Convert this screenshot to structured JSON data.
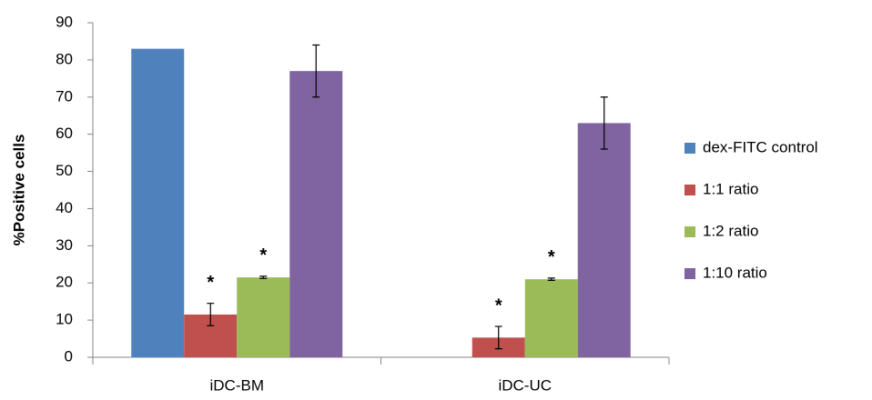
{
  "chart_data": {
    "type": "bar",
    "y_label": "%Positive  cells",
    "categories": [
      "iDC-BM",
      "iDC-UC"
    ],
    "series": [
      {
        "name": "dex-FITC control",
        "color": "#4f81bd",
        "values": [
          83,
          0
        ]
      },
      {
        "name": "1:1 ratio",
        "color": "#c0504d",
        "values": [
          11.5,
          5.3
        ],
        "errors": [
          3,
          3
        ],
        "markers": [
          "*",
          "*"
        ]
      },
      {
        "name": "1:2 ratio",
        "color": "#9bbb59",
        "values": [
          21.5,
          21
        ],
        "errors": [
          0.3,
          0.3
        ],
        "markers": [
          "*",
          "*"
        ]
      },
      {
        "name": "1:10 ratio",
        "color": "#8064a2",
        "values": [
          77,
          63
        ],
        "errors": [
          7,
          7
        ]
      }
    ],
    "ylim": [
      0,
      90
    ],
    "yticks": [
      0,
      10,
      20,
      30,
      40,
      50,
      60,
      70,
      80,
      90
    ],
    "legend": "right"
  }
}
